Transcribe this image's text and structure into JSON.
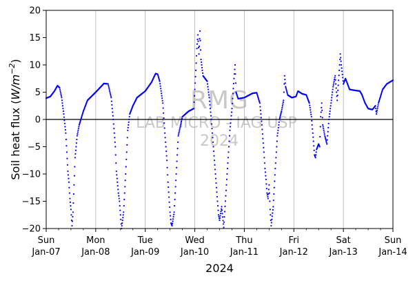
{
  "chart_data": {
    "type": "scatter",
    "title": "",
    "xlabel": "2024",
    "ylabel": "Soil heat flux (W/m⁻²)",
    "ylabel_text": "Soil heat flux (",
    "ylabel_unit": "W/m",
    "ylabel_exp": "−2",
    "ylabel_close": ")",
    "xlim": [
      "2024-01-07 00:00",
      "2024-01-14 00:00"
    ],
    "ylim": [
      -20,
      20
    ],
    "yticks": [
      -20,
      -15,
      -10,
      -5,
      0,
      5,
      10,
      15,
      20
    ],
    "xticks": [
      {
        "date": "2024-01-07",
        "day": "Sun",
        "label": "Jan-07"
      },
      {
        "date": "2024-01-08",
        "day": "Mon",
        "label": "Jan-08"
      },
      {
        "date": "2024-01-09",
        "day": "Tue",
        "label": "Jan-09"
      },
      {
        "date": "2024-01-10",
        "day": "Wed",
        "label": "Jan-10"
      },
      {
        "date": "2024-01-11",
        "day": "Thu",
        "label": "Jan-11"
      },
      {
        "date": "2024-01-12",
        "day": "Fri",
        "label": "Jan-12"
      },
      {
        "date": "2024-01-13",
        "day": "Sat",
        "label": "Jan-13"
      },
      {
        "date": "2024-01-14",
        "day": "Sun",
        "label": "Jan-14"
      }
    ],
    "grid": "vertical-daily",
    "zero_line": true,
    "marker_color": "#0000ff",
    "watermark": [
      "RMG",
      "LAB MICRO - IAG USP",
      "2024"
    ],
    "series": [
      {
        "values": [
          [
            "2024-01-07 00:00",
            3.9
          ],
          [
            "2024-01-07 02:00",
            4.2
          ],
          [
            "2024-01-07 04:00",
            5.2
          ],
          [
            "2024-01-07 05:30",
            6.2
          ],
          [
            "2024-01-07 06:30",
            5.8
          ],
          [
            "2024-01-07 07:30",
            4.0
          ],
          [
            "2024-01-07 08:30",
            1.0
          ],
          [
            "2024-01-07 09:30",
            -2.5
          ],
          [
            "2024-01-07 10:00",
            -6.0
          ],
          [
            "2024-01-07 10:30",
            -9.5
          ],
          [
            "2024-01-07 11:00",
            -11.5
          ],
          [
            "2024-01-07 11:30",
            -14.5
          ],
          [
            "2024-01-07 12:00",
            -16.5
          ],
          [
            "2024-01-07 12:30",
            -19.5
          ],
          [
            "2024-01-07 13:00",
            -17.0
          ],
          [
            "2024-01-07 13:30",
            -12.0
          ],
          [
            "2024-01-07 14:00",
            -7.0
          ],
          [
            "2024-01-07 15:00",
            -3.0
          ],
          [
            "2024-01-07 16:00",
            -1.0
          ],
          [
            "2024-01-07 18:00",
            1.5
          ],
          [
            "2024-01-07 20:00",
            3.5
          ],
          [
            "2024-01-08 00:00",
            5.0
          ],
          [
            "2024-01-08 04:00",
            6.6
          ],
          [
            "2024-01-08 06:00",
            6.5
          ],
          [
            "2024-01-08 07:30",
            4.0
          ],
          [
            "2024-01-08 08:30",
            0.0
          ],
          [
            "2024-01-08 09:30",
            -5.0
          ],
          [
            "2024-01-08 10:00",
            -9.5
          ],
          [
            "2024-01-08 10:30",
            -11.5
          ],
          [
            "2024-01-08 11:00",
            -13.5
          ],
          [
            "2024-01-08 11:30",
            -15.0
          ],
          [
            "2024-01-08 12:00",
            -17.5
          ],
          [
            "2024-01-08 12:30",
            -20.0
          ],
          [
            "2024-01-08 13:30",
            -17.0
          ],
          [
            "2024-01-08 14:30",
            -10.0
          ],
          [
            "2024-01-08 15:30",
            -2.0
          ],
          [
            "2024-01-08 16:30",
            1.0
          ],
          [
            "2024-01-08 18:00",
            2.5
          ],
          [
            "2024-01-08 20:00",
            4.0
          ],
          [
            "2024-01-09 00:00",
            5.2
          ],
          [
            "2024-01-09 03:00",
            6.8
          ],
          [
            "2024-01-09 05:00",
            8.4
          ],
          [
            "2024-01-09 06:00",
            8.3
          ],
          [
            "2024-01-09 07:00",
            7.0
          ],
          [
            "2024-01-09 08:30",
            3.0
          ],
          [
            "2024-01-09 09:30",
            -2.5
          ],
          [
            "2024-01-09 10:30",
            -7.5
          ],
          [
            "2024-01-09 11:00",
            -11.5
          ],
          [
            "2024-01-09 12:00",
            -17.0
          ],
          [
            "2024-01-09 12:30",
            -19.0
          ],
          [
            "2024-01-09 13:00",
            -19.5
          ],
          [
            "2024-01-09 14:00",
            -17.0
          ],
          [
            "2024-01-09 15:00",
            -10.0
          ],
          [
            "2024-01-09 16:00",
            -3.0
          ],
          [
            "2024-01-09 18:00",
            0.5
          ],
          [
            "2024-01-09 21:00",
            1.5
          ],
          [
            "2024-01-09 23:30",
            2.0
          ],
          [
            "2024-01-10 00:30",
            9.0
          ],
          [
            "2024-01-10 01:00",
            13.0
          ],
          [
            "2024-01-10 01:30",
            15.5
          ],
          [
            "2024-01-10 02:00",
            12.0
          ],
          [
            "2024-01-10 02:30",
            16.2
          ],
          [
            "2024-01-10 03:00",
            11.0
          ],
          [
            "2024-01-10 04:00",
            8.0
          ],
          [
            "2024-01-10 05:00",
            7.5
          ],
          [
            "2024-01-10 06:00",
            7.0
          ],
          [
            "2024-01-10 07:00",
            4.0
          ],
          [
            "2024-01-10 08:00",
            0.0
          ],
          [
            "2024-01-10 09:00",
            -5.0
          ],
          [
            "2024-01-10 10:00",
            -10.0
          ],
          [
            "2024-01-10 10:30",
            -12.5
          ],
          [
            "2024-01-10 11:00",
            -15.0
          ],
          [
            "2024-01-10 11:30",
            -17.5
          ],
          [
            "2024-01-10 12:00",
            -18.5
          ],
          [
            "2024-01-10 13:00",
            -16.0
          ],
          [
            "2024-01-10 14:00",
            -19.8
          ],
          [
            "2024-01-10 15:00",
            -14.0
          ],
          [
            "2024-01-10 16:00",
            -8.0
          ],
          [
            "2024-01-10 17:00",
            -2.0
          ],
          [
            "2024-01-10 18:00",
            2.0
          ],
          [
            "2024-01-10 19:00",
            7.5
          ],
          [
            "2024-01-10 19:30",
            10.0
          ],
          [
            "2024-01-10 20:00",
            5.0
          ],
          [
            "2024-01-10 21:00",
            3.8
          ],
          [
            "2024-01-11 00:00",
            4.0
          ],
          [
            "2024-01-11 04:00",
            4.8
          ],
          [
            "2024-01-11 06:00",
            4.9
          ],
          [
            "2024-01-11 07:30",
            3.0
          ],
          [
            "2024-01-11 08:30",
            -1.0
          ],
          [
            "2024-01-11 09:30",
            -6.0
          ],
          [
            "2024-01-11 10:00",
            -9.0
          ],
          [
            "2024-01-11 10:30",
            -11.0
          ],
          [
            "2024-01-11 11:00",
            -13.5
          ],
          [
            "2024-01-11 11:30",
            -14.5
          ],
          [
            "2024-01-11 12:00",
            -12.0
          ],
          [
            "2024-01-11 12:30",
            -16.5
          ],
          [
            "2024-01-11 13:00",
            -19.5
          ],
          [
            "2024-01-11 14:00",
            -16.0
          ],
          [
            "2024-01-11 15:00",
            -9.0
          ],
          [
            "2024-01-11 16:00",
            -3.0
          ],
          [
            "2024-01-11 17:00",
            0.0
          ],
          [
            "2024-01-11 18:00",
            1.5
          ],
          [
            "2024-01-11 19:00",
            3.5
          ],
          [
            "2024-01-11 19:30",
            8.0
          ],
          [
            "2024-01-11 20:00",
            6.0
          ],
          [
            "2024-01-11 21:00",
            4.5
          ],
          [
            "2024-01-11 23:00",
            4.0
          ],
          [
            "2024-01-12 01:00",
            4.2
          ],
          [
            "2024-01-12 02:00",
            5.2
          ],
          [
            "2024-01-12 04:00",
            4.7
          ],
          [
            "2024-01-12 06:00",
            4.5
          ],
          [
            "2024-01-12 07:30",
            3.0
          ],
          [
            "2024-01-12 08:30",
            0.5
          ],
          [
            "2024-01-12 09:30",
            -4.0
          ],
          [
            "2024-01-12 10:00",
            -6.5
          ],
          [
            "2024-01-12 10:30",
            -7.0
          ],
          [
            "2024-01-12 11:00",
            -5.5
          ],
          [
            "2024-01-12 12:00",
            -4.5
          ],
          [
            "2024-01-12 12:30",
            -5.0
          ],
          [
            "2024-01-12 13:00",
            0.5
          ],
          [
            "2024-01-12 13:30",
            3.0
          ],
          [
            "2024-01-12 14:00",
            -1.0
          ],
          [
            "2024-01-12 15:00",
            -3.0
          ],
          [
            "2024-01-12 16:00",
            -4.5
          ],
          [
            "2024-01-12 17:00",
            0.0
          ],
          [
            "2024-01-12 18:00",
            3.0
          ],
          [
            "2024-01-12 19:00",
            6.0
          ],
          [
            "2024-01-12 20:00",
            8.0
          ],
          [
            "2024-01-12 21:00",
            3.5
          ],
          [
            "2024-01-12 22:00",
            9.0
          ],
          [
            "2024-01-12 22:30",
            12.0
          ],
          [
            "2024-01-12 23:00",
            10.0
          ],
          [
            "2024-01-13 00:00",
            6.5
          ],
          [
            "2024-01-13 01:00",
            7.5
          ],
          [
            "2024-01-13 02:00",
            6.5
          ],
          [
            "2024-01-13 03:00",
            5.5
          ],
          [
            "2024-01-13 06:00",
            5.3
          ],
          [
            "2024-01-13 08:00",
            5.2
          ],
          [
            "2024-01-13 09:00",
            4.5
          ],
          [
            "2024-01-13 10:30",
            3.0
          ],
          [
            "2024-01-13 12:00",
            2.0
          ],
          [
            "2024-01-13 14:00",
            1.8
          ],
          [
            "2024-01-13 15:30",
            2.5
          ],
          [
            "2024-01-13 16:00",
            1.0
          ],
          [
            "2024-01-13 17:00",
            3.0
          ],
          [
            "2024-01-13 19:00",
            5.5
          ],
          [
            "2024-01-13 21:00",
            6.5
          ],
          [
            "2024-01-14 00:00",
            7.2
          ]
        ]
      }
    ]
  }
}
